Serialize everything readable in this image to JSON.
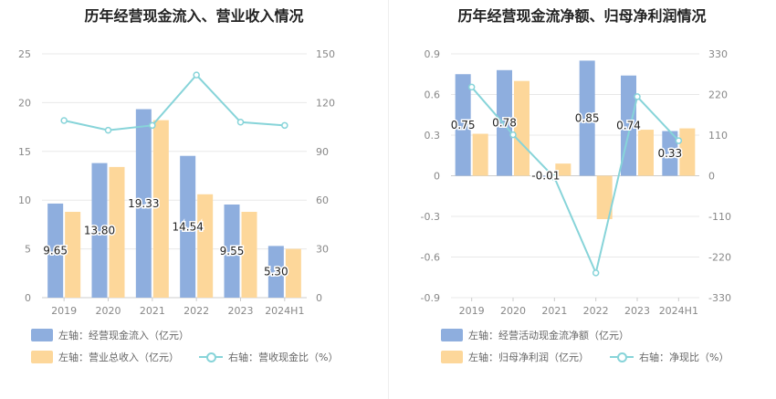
{
  "colors": {
    "blue": "#8eaede",
    "orange": "#fdd79a",
    "cyan": "#87d4d9",
    "axis_text": "#888888",
    "grid": "#e8e8e8"
  },
  "left": {
    "title": "历年经营现金流入、营业收入情况",
    "legend": [
      {
        "label": "左轴：经营现金流入（亿元）",
        "kind": "bar",
        "color": "#8eaede"
      },
      {
        "label": "左轴：营业总收入（亿元）",
        "kind": "bar",
        "color": "#fdd79a"
      },
      {
        "label": "右轴：营收现金比（%）",
        "kind": "line",
        "color": "#87d4d9"
      }
    ]
  },
  "right": {
    "title": "历年经营现金流净额、归母净利润情况",
    "legend": [
      {
        "label": "左轴：经营活动现金流净额（亿元）",
        "kind": "bar",
        "color": "#8eaede"
      },
      {
        "label": "左轴：归母净利润（亿元）",
        "kind": "bar",
        "color": "#fdd79a"
      },
      {
        "label": "右轴：净现比（%）",
        "kind": "line",
        "color": "#87d4d9"
      }
    ]
  },
  "chart_data": [
    {
      "type": "bar",
      "title": "历年经营现金流入、营业收入情况",
      "categories": [
        "2019",
        "2020",
        "2021",
        "2022",
        "2023",
        "2024H1"
      ],
      "left_axis": {
        "min": 0,
        "max": 25,
        "ticks": [
          0,
          5,
          10,
          15,
          20,
          25
        ]
      },
      "right_axis": {
        "min": 0,
        "max": 150,
        "ticks": [
          0,
          30,
          60,
          90,
          120,
          150
        ]
      },
      "series": [
        {
          "name": "左轴：经营现金流入（亿元）",
          "kind": "bar",
          "axis": "left",
          "color": "#8eaede",
          "values": [
            9.65,
            13.8,
            19.33,
            14.54,
            9.55,
            5.3
          ],
          "labels": [
            "9.65",
            "13.80",
            "19.33",
            "14.54",
            "9.55",
            "5.30"
          ]
        },
        {
          "name": "左轴：营业总收入（亿元）",
          "kind": "bar",
          "axis": "left",
          "color": "#fdd79a",
          "values": [
            8.8,
            13.4,
            18.2,
            10.6,
            8.8,
            5.0
          ]
        },
        {
          "name": "右轴：营收现金比（%）",
          "kind": "line",
          "axis": "right",
          "color": "#87d4d9",
          "values": [
            109,
            103,
            106,
            137,
            108,
            106
          ]
        }
      ]
    },
    {
      "type": "bar",
      "title": "历年经营现金流净额、归母净利润情况",
      "categories": [
        "2019",
        "2020",
        "2021",
        "2022",
        "2023",
        "2024H1"
      ],
      "left_axis": {
        "min": -0.9,
        "max": 0.9,
        "ticks": [
          -0.9,
          -0.6,
          -0.3,
          0,
          0.3,
          0.6,
          0.9
        ]
      },
      "right_axis": {
        "min": -330,
        "max": 330,
        "ticks": [
          -330,
          -220,
          -110,
          0,
          110,
          220,
          330
        ]
      },
      "series": [
        {
          "name": "左轴：经营活动现金流净额（亿元）",
          "kind": "bar",
          "axis": "left",
          "color": "#8eaede",
          "values": [
            0.75,
            0.78,
            -0.01,
            0.85,
            0.74,
            0.33
          ],
          "labels": [
            "0.75",
            "0.78",
            "-0.01",
            "0.85",
            "0.74",
            "0.33"
          ]
        },
        {
          "name": "左轴：归母净利润（亿元）",
          "kind": "bar",
          "axis": "left",
          "color": "#fdd79a",
          "values": [
            0.31,
            0.7,
            0.09,
            -0.32,
            0.34,
            0.35
          ]
        },
        {
          "name": "右轴：净现比（%）",
          "kind": "line",
          "axis": "right",
          "color": "#87d4d9",
          "values": [
            240,
            111,
            -5,
            -263,
            214,
            95
          ]
        }
      ]
    }
  ]
}
